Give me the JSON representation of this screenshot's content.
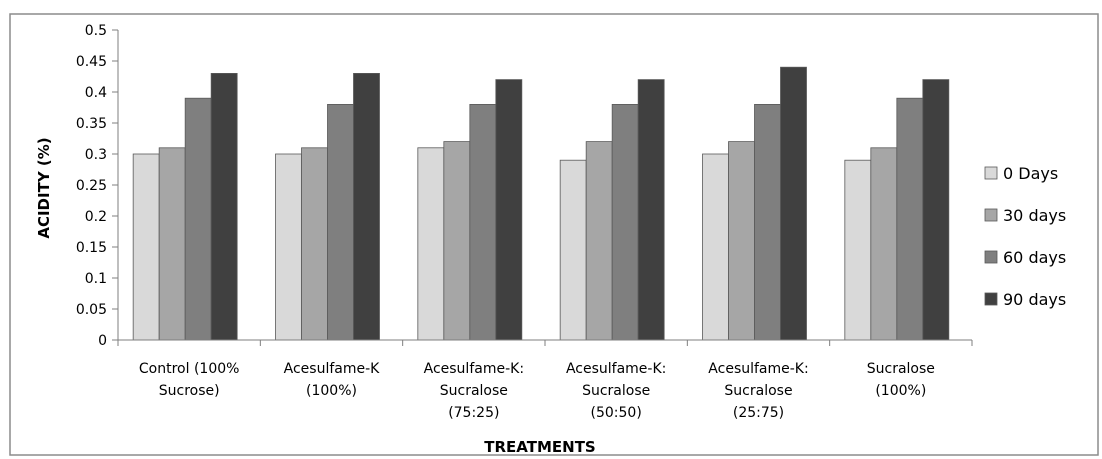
{
  "chart_data": {
    "type": "bar",
    "title": "",
    "xlabel": "TREATMENTS",
    "ylabel": "ACIDITY (%)",
    "ylim": [
      0,
      0.5
    ],
    "yticks": [
      "0",
      "0.05",
      "0.1",
      "0.15",
      "0.2",
      "0.25",
      "0.3",
      "0.35",
      "0.4",
      "0.45",
      "0.5"
    ],
    "grid": false,
    "legend_position": "right",
    "categories": [
      [
        "Control (100%",
        "Sucrose)"
      ],
      [
        "Acesulfame-K",
        "(100%)"
      ],
      [
        "Acesulfame-K:",
        "Sucralose",
        "(75:25)"
      ],
      [
        "Acesulfame-K:",
        "Sucralose",
        "(50:50)"
      ],
      [
        "Acesulfame-K:",
        "Sucralose",
        "(25:75)"
      ],
      [
        "Sucralose",
        "(100%)"
      ]
    ],
    "series": [
      {
        "name": "0 Days",
        "color": "#d9d9d9",
        "values": [
          0.3,
          0.3,
          0.31,
          0.29,
          0.3,
          0.29
        ]
      },
      {
        "name": "30 days",
        "color": "#a6a6a6",
        "values": [
          0.31,
          0.31,
          0.32,
          0.32,
          0.32,
          0.31
        ]
      },
      {
        "name": "60 days",
        "color": "#7f7f7f",
        "values": [
          0.39,
          0.38,
          0.38,
          0.38,
          0.38,
          0.39
        ]
      },
      {
        "name": "90 days",
        "color": "#404040",
        "values": [
          0.43,
          0.43,
          0.42,
          0.42,
          0.44,
          0.42
        ]
      }
    ]
  }
}
